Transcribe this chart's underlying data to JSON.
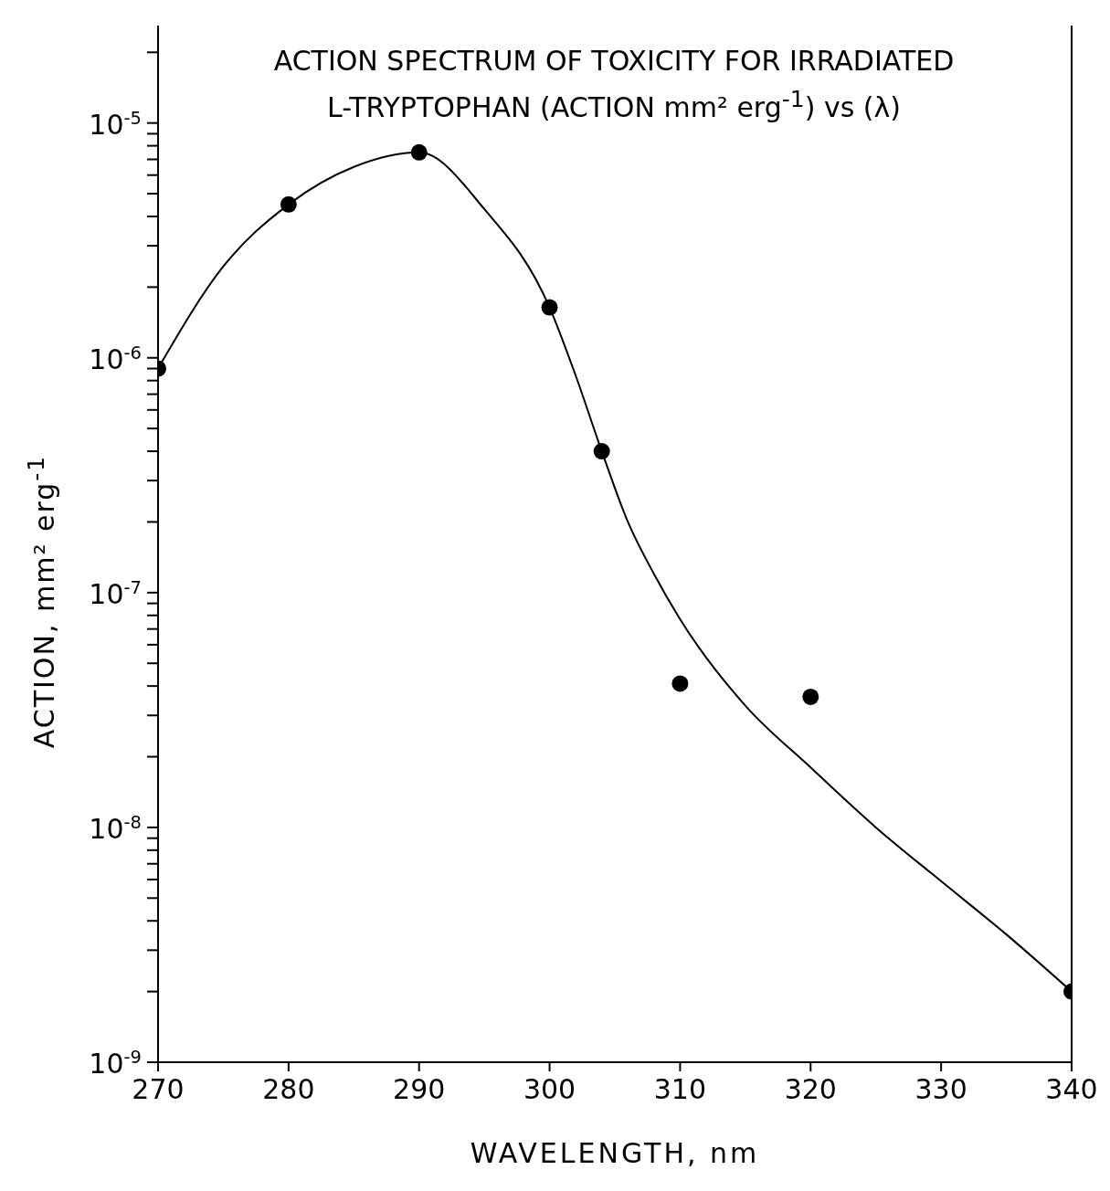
{
  "chart_data": {
    "type": "scatter",
    "title": "ACTION SPECTRUM OF TOXICITY FOR IRRADIATED\nL-TRYPTOPHAN (ACTION  mm² erg$^{-1}$) vs (λ)",
    "xlabel": "WAVELENGTH, nm",
    "ylabel": "ACTION,  mm² erg$^{-1}$",
    "log": "y",
    "marker": "circle",
    "line_style": "solid",
    "xlim": [
      270,
      340
    ],
    "xticks": [
      270,
      280,
      290,
      300,
      310,
      320,
      330,
      340
    ],
    "ylim": [
      1e-09,
      2.6e-05
    ],
    "yticks": [
      {
        "value": 1e-09,
        "label": "10$^{-9}$"
      },
      {
        "value": 2e-09,
        "label": null
      },
      {
        "value": 3e-09,
        "label": null
      },
      {
        "value": 4e-09,
        "label": null
      },
      {
        "value": 5e-09,
        "label": null
      },
      {
        "value": 6e-09,
        "label": null
      },
      {
        "value": 7e-09,
        "label": null
      },
      {
        "value": 8e-09,
        "label": null
      },
      {
        "value": 9e-09,
        "label": null
      },
      {
        "value": 1e-08,
        "label": "10$^{-8}$"
      },
      {
        "value": 2e-08,
        "label": null
      },
      {
        "value": 3e-08,
        "label": null
      },
      {
        "value": 4e-08,
        "label": null
      },
      {
        "value": 5e-08,
        "label": null
      },
      {
        "value": 6e-08,
        "label": null
      },
      {
        "value": 7e-08,
        "label": null
      },
      {
        "value": 8e-08,
        "label": null
      },
      {
        "value": 9e-08,
        "label": null
      },
      {
        "value": 1e-07,
        "label": "10$^{-7}$"
      },
      {
        "value": 2e-07,
        "label": null
      },
      {
        "value": 3e-07,
        "label": null
      },
      {
        "value": 4e-07,
        "label": null
      },
      {
        "value": 5e-07,
        "label": null
      },
      {
        "value": 6e-07,
        "label": null
      },
      {
        "value": 7e-07,
        "label": null
      },
      {
        "value": 8e-07,
        "label": null
      },
      {
        "value": 9e-07,
        "label": null
      },
      {
        "value": 1e-06,
        "label": "10$^{-6}$"
      },
      {
        "value": 2e-06,
        "label": null
      },
      {
        "value": 3e-06,
        "label": null
      },
      {
        "value": 4e-06,
        "label": null
      },
      {
        "value": 5e-06,
        "label": null
      },
      {
        "value": 6e-06,
        "label": null
      },
      {
        "value": 7e-06,
        "label": null
      },
      {
        "value": 8e-06,
        "label": null
      },
      {
        "value": 9e-06,
        "label": null
      },
      {
        "value": 1e-05,
        "label": "10$^{-5}$"
      },
      {
        "value": 2e-05,
        "label": null
      }
    ],
    "series": [
      {
        "color": "#000000",
        "x": [
          270,
          280,
          290,
          300,
          304,
          310,
          320,
          340
        ],
        "values": [
          9e-07,
          4.5e-06,
          7.5e-06,
          1.64e-06,
          4e-07,
          4.1e-08,
          3.6e-08,
          2e-09
        ]
      },
      {
        "type": "line",
        "color": "#000000",
        "marker": "none",
        "x": [
          270,
          275,
          280,
          285,
          290,
          295,
          300,
          302,
          304,
          306,
          308,
          310,
          315,
          320,
          325,
          330,
          335,
          340
        ],
        "values": [
          9e-07,
          2.45e-06,
          4.5e-06,
          6.5e-06,
          7.5e-06,
          4.3e-06,
          1.64e-06,
          8.4e-07,
          4e-07,
          2e-07,
          1.2e-07,
          7.7e-08,
          3.3e-08,
          1.8e-08,
          1e-08,
          5.9e-09,
          3.5e-09,
          2e-09
        ]
      }
    ]
  }
}
